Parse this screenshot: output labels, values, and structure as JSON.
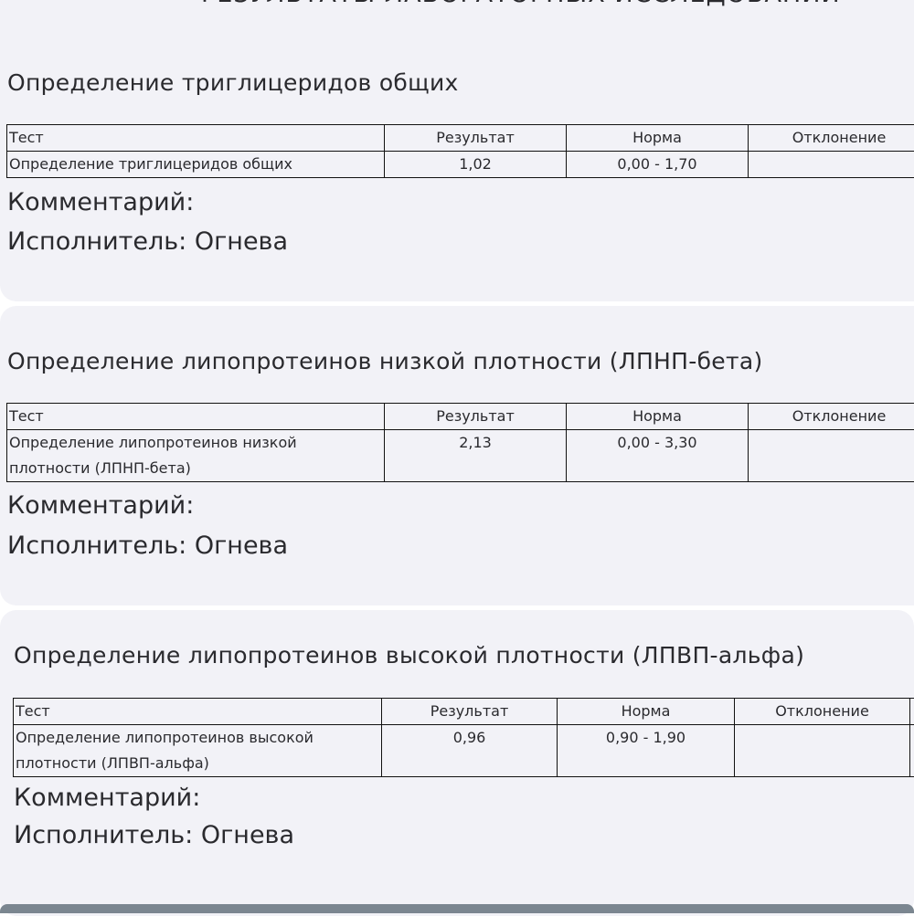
{
  "document_title": "РЕЗУЛЬТАТЫ ЛАБОРАТОРНЫХ ИССЛЕДОВАНИЙ",
  "table_headers": [
    "Тест",
    "Результат",
    "Норма",
    "Отклонение"
  ],
  "sections": [
    {
      "title": "Определение триглицеридов общих",
      "rows": [
        {
          "test": "Определение триглицеридов общих",
          "result": "1,02",
          "norm": "0,00 - 1,70",
          "deviation": ""
        }
      ],
      "comment_label": "Комментарий:",
      "executor": "Исполнитель: Огнева"
    },
    {
      "title": "Определение липопротеинов низкой плотности (ЛПНП-бета)",
      "rows": [
        {
          "test": "Определение липопротеинов низкой плотности (ЛПНП-бета)",
          "result": "2,13",
          "norm": "0,00 - 3,30",
          "deviation": ""
        }
      ],
      "comment_label": "Комментарий:",
      "executor": "Исполнитель: Огнева"
    },
    {
      "title": "Определение липопротеинов высокой плотности (ЛПВП-альфа)",
      "rows": [
        {
          "test": "Определение липопротеинов высокой плотности (ЛПВП-альфа)",
          "result": "0,96",
          "norm": "0,90 - 1,90",
          "deviation": ""
        }
      ],
      "comment_label": "Комментарий:",
      "executor": "Исполнитель: Огнева"
    }
  ]
}
